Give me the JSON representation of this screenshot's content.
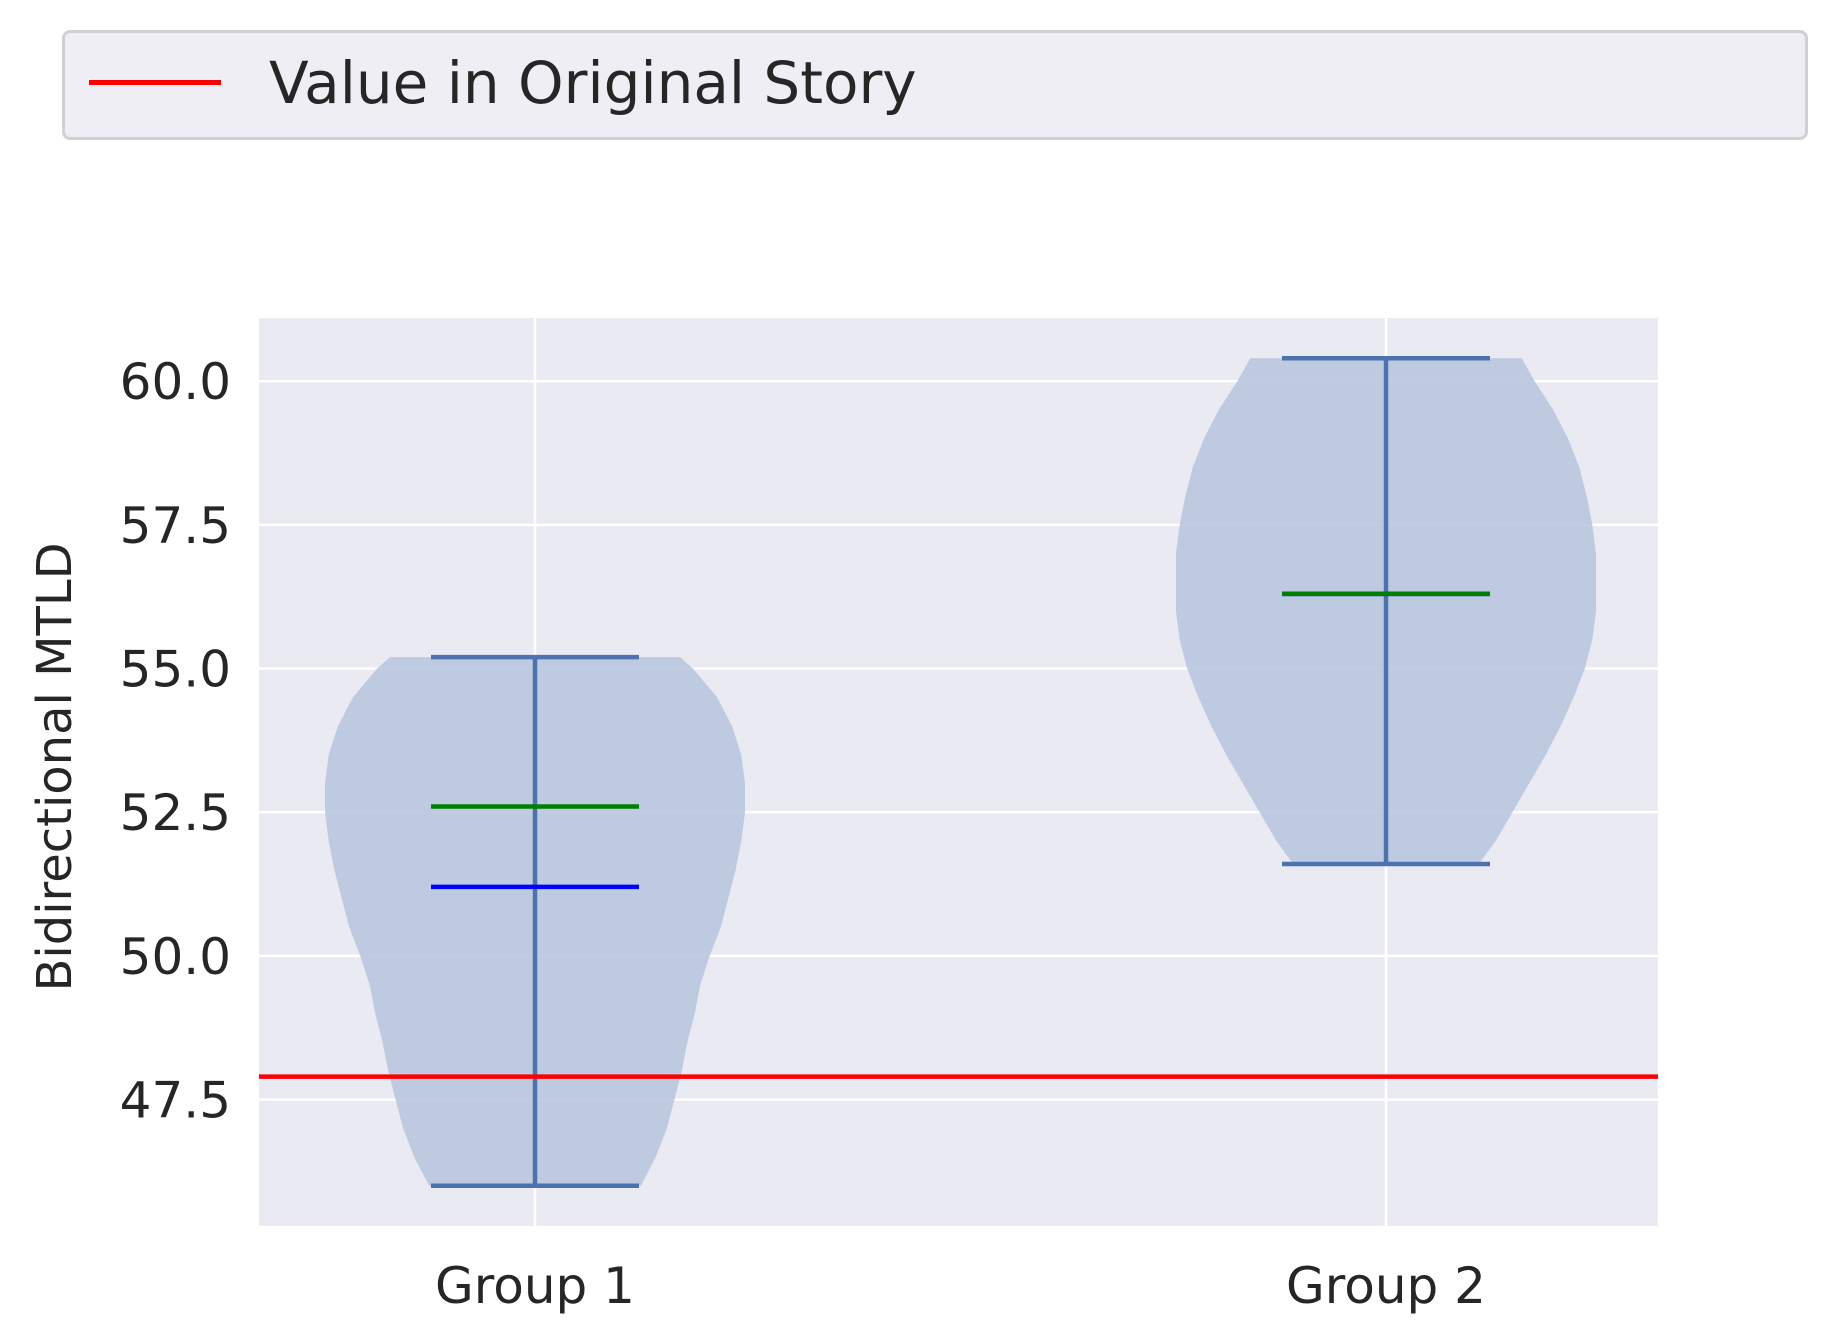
{
  "legend": {
    "label": "Value in Original Story",
    "color": "#ff0000"
  },
  "chart_data": {
    "type": "violin",
    "title": "",
    "xlabel": "",
    "ylabel": "Bidirectional MTLD",
    "categories": [
      "Group 1",
      "Group 2"
    ],
    "ylim": [
      45.3,
      61.1
    ],
    "yticks": [
      47.5,
      50.0,
      52.5,
      55.0,
      57.5,
      60.0
    ],
    "ytick_labels": [
      "47.5",
      "50.0",
      "52.5",
      "55.0",
      "57.5",
      "60.0"
    ],
    "grid": true,
    "legend_position": "top",
    "reference_line": {
      "name": "Value in Original Story",
      "value": 47.9,
      "color": "#ff0000"
    },
    "violins": [
      {
        "category": "Group 1",
        "min": 46.0,
        "max": 55.2,
        "mean": 52.6,
        "median": 51.2,
        "density": [
          [
            46.0,
            0.57
          ],
          [
            46.5,
            0.65
          ],
          [
            47.0,
            0.71
          ],
          [
            47.5,
            0.75
          ],
          [
            48.0,
            0.79
          ],
          [
            48.5,
            0.82
          ],
          [
            49.0,
            0.86
          ],
          [
            49.5,
            0.89
          ],
          [
            50.0,
            0.94
          ],
          [
            50.5,
            1.0
          ],
          [
            51.0,
            1.04
          ],
          [
            51.5,
            1.08
          ],
          [
            52.0,
            1.11
          ],
          [
            52.5,
            1.13
          ],
          [
            53.0,
            1.13
          ],
          [
            53.5,
            1.11
          ],
          [
            54.0,
            1.06
          ],
          [
            54.5,
            0.98
          ],
          [
            55.0,
            0.85
          ],
          [
            55.2,
            0.78
          ]
        ]
      },
      {
        "category": "Group 2",
        "min": 51.6,
        "max": 60.4,
        "mean": 56.3,
        "median": 56.3,
        "density": [
          [
            51.6,
            0.5
          ],
          [
            52.0,
            0.59
          ],
          [
            52.5,
            0.68
          ],
          [
            53.0,
            0.77
          ],
          [
            53.5,
            0.86
          ],
          [
            54.0,
            0.94
          ],
          [
            54.5,
            1.01
          ],
          [
            55.0,
            1.07
          ],
          [
            55.5,
            1.11
          ],
          [
            56.0,
            1.13
          ],
          [
            56.5,
            1.13
          ],
          [
            57.0,
            1.13
          ],
          [
            57.5,
            1.11
          ],
          [
            58.0,
            1.08
          ],
          [
            58.5,
            1.04
          ],
          [
            59.0,
            0.98
          ],
          [
            59.5,
            0.9
          ],
          [
            60.0,
            0.8
          ],
          [
            60.4,
            0.73
          ]
        ]
      }
    ],
    "colors": {
      "violin_fill": "#b9c6de",
      "whisker": "#4c72b0",
      "mean_line": "#008000",
      "median_line": "#0000ff",
      "plot_background": "#eaeaf2",
      "grid": "#ffffff"
    }
  }
}
